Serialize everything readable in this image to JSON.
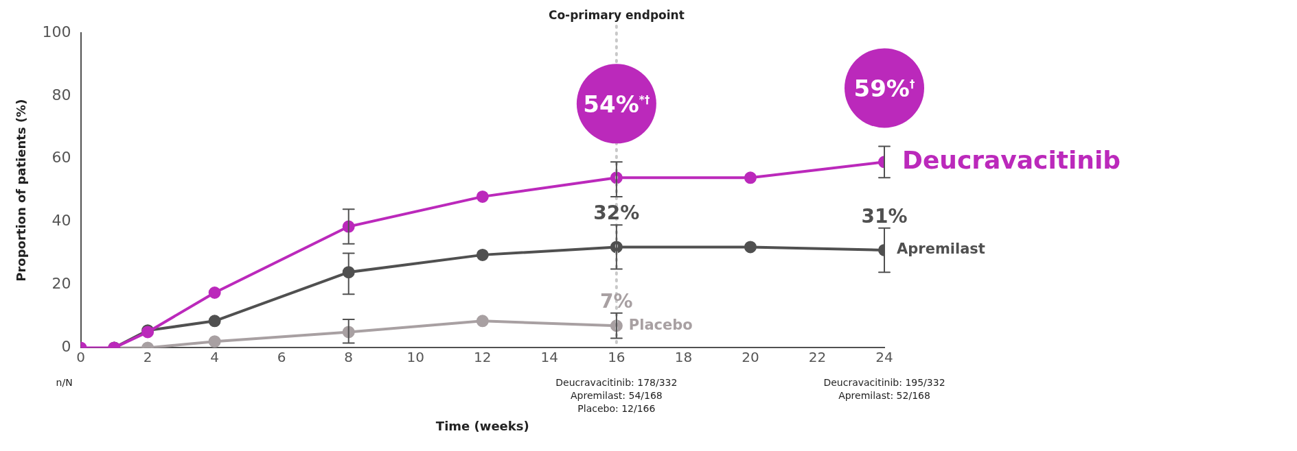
{
  "chart_data": {
    "type": "line",
    "xlabel": "Time (weeks)",
    "ylabel": "Proportion of patients (%)",
    "xlim": [
      0,
      24
    ],
    "xticks": [
      0,
      2,
      4,
      6,
      8,
      10,
      12,
      14,
      16,
      18,
      20,
      22,
      24
    ],
    "ylim": [
      0,
      100
    ],
    "yticks": [
      0,
      20,
      40,
      60,
      80,
      100
    ],
    "grid": false,
    "legend": false,
    "marker": "circle",
    "line_style": "solid",
    "series": [
      {
        "name": "Deucravacitinib",
        "color": "#bb29bb",
        "x": [
          0,
          1,
          2,
          4,
          8,
          12,
          16,
          20,
          24
        ],
        "values": [
          0,
          0,
          5,
          17.5,
          38.5,
          48,
          54,
          54,
          59
        ],
        "errors": [
          null,
          null,
          null,
          null,
          [
            33,
            44
          ],
          null,
          [
            48,
            59
          ],
          null,
          [
            54,
            64
          ]
        ],
        "value_labels": [
          null,
          null,
          null,
          null,
          null,
          null,
          "54%$^{*†}$",
          null,
          "59%$^{†}$"
        ]
      },
      {
        "name": "Apremilast",
        "color": "#505050",
        "x": [
          1,
          2,
          4,
          8,
          12,
          16,
          20,
          24
        ],
        "values": [
          0,
          5.5,
          8.5,
          24,
          29.5,
          32,
          32,
          31
        ],
        "errors": [
          null,
          null,
          null,
          [
            17,
            30
          ],
          null,
          [
            25,
            39
          ],
          null,
          [
            24,
            38
          ]
        ],
        "value_labels": [
          null,
          null,
          null,
          null,
          null,
          "32%",
          null,
          "31%"
        ]
      },
      {
        "name": "Placebo",
        "color": "#a8a0a2",
        "x": [
          1,
          2,
          4,
          8,
          12,
          16
        ],
        "values": [
          0,
          0,
          2,
          5,
          8.5,
          7
        ],
        "errors": [
          null,
          null,
          null,
          [
            1.5,
            9
          ],
          null,
          [
            3,
            11
          ]
        ],
        "value_labels": [
          null,
          null,
          null,
          null,
          null,
          "7%"
        ]
      }
    ],
    "ref_lines": [
      {
        "axis": "x",
        "value": 16,
        "label": "Co-primary endpoint",
        "color": "#c8c8c8",
        "line_style": "dotted"
      }
    ],
    "annotations": [
      "n/N",
      "Deucravacitinib: 178/332",
      "Apremilast: 54/168",
      "Placebo: 12/166",
      "Deucravacitinib: 195/332",
      "Apremilast: 52/168"
    ]
  }
}
